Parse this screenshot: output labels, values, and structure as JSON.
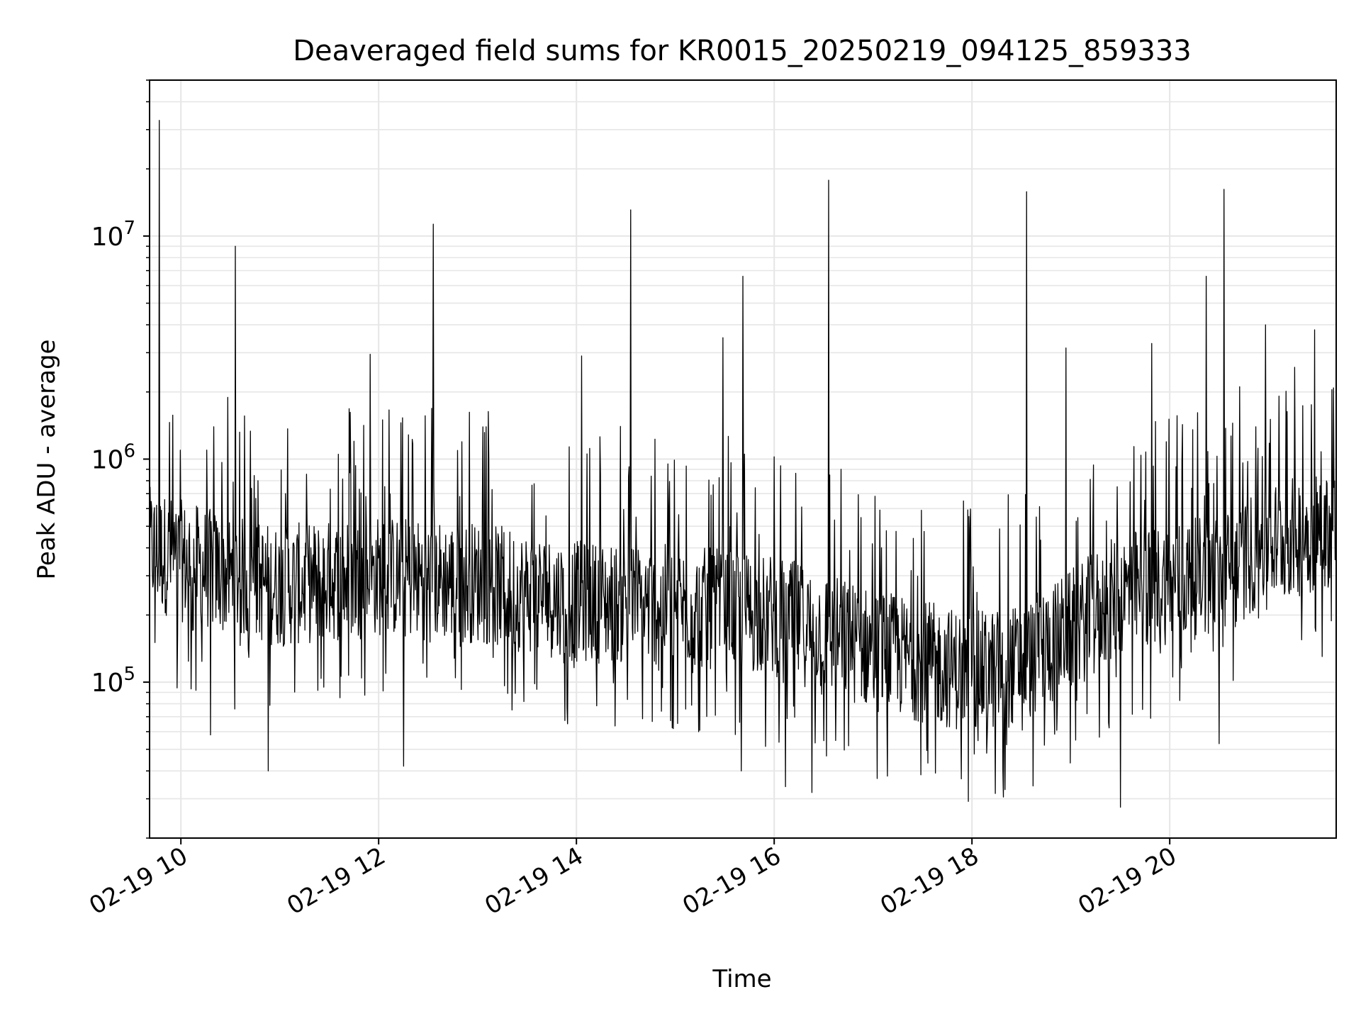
{
  "chart_data": {
    "type": "line",
    "title": "Deaveraged field sums for KR0015_20250219_094125_859333",
    "xlabel": "Time",
    "ylabel": "Peak ADU - average",
    "y_scale": "log",
    "ylim": [
      20000,
      50000000
    ],
    "xlim": [
      "2025-02-19 09:41",
      "2025-02-19 21:41"
    ],
    "x_ticks": [
      {
        "time": "2025-02-19 10:00",
        "label": "02-19 10"
      },
      {
        "time": "2025-02-19 12:00",
        "label": "02-19 12"
      },
      {
        "time": "2025-02-19 14:00",
        "label": "02-19 14"
      },
      {
        "time": "2025-02-19 16:00",
        "label": "02-19 16"
      },
      {
        "time": "2025-02-19 18:00",
        "label": "02-19 18"
      },
      {
        "time": "2025-02-19 20:00",
        "label": "02-19 20"
      }
    ],
    "y_ticks": [
      {
        "value": 100000,
        "base": "10",
        "exp": "5"
      },
      {
        "value": 1000000,
        "base": "10",
        "exp": "6"
      },
      {
        "value": 10000000,
        "base": "10",
        "exp": "7"
      }
    ],
    "grid": true,
    "line_color": "#000000",
    "series": [
      {
        "baseline": [
          {
            "time": "2025-02-19 09:41",
            "value": 400000
          },
          {
            "time": "2025-02-19 10:00",
            "value": 350000
          },
          {
            "time": "2025-02-19 10:30",
            "value": 300000
          },
          {
            "time": "2025-02-19 11:00",
            "value": 270000
          },
          {
            "time": "2025-02-19 12:00",
            "value": 300000
          },
          {
            "time": "2025-02-19 13:00",
            "value": 280000
          },
          {
            "time": "2025-02-19 14:00",
            "value": 230000
          },
          {
            "time": "2025-02-19 15:00",
            "value": 220000
          },
          {
            "time": "2025-02-19 16:00",
            "value": 200000
          },
          {
            "time": "2025-02-19 17:00",
            "value": 140000
          },
          {
            "time": "2025-02-19 18:00",
            "value": 110000
          },
          {
            "time": "2025-02-19 18:30",
            "value": 120000
          },
          {
            "time": "2025-02-19 19:00",
            "value": 170000
          },
          {
            "time": "2025-02-19 19:30",
            "value": 250000
          },
          {
            "time": "2025-02-19 20:00",
            "value": 280000
          },
          {
            "time": "2025-02-19 20:30",
            "value": 300000
          },
          {
            "time": "2025-02-19 21:00",
            "value": 420000
          },
          {
            "time": "2025-02-19 21:41",
            "value": 500000
          }
        ],
        "spikes": [
          {
            "time": "2025-02-19 09:47",
            "value": 33000000
          },
          {
            "time": "2025-02-19 10:33",
            "value": 9000000
          },
          {
            "time": "2025-02-19 12:33",
            "value": 11300000
          },
          {
            "time": "2025-02-19 14:33",
            "value": 13100000
          },
          {
            "time": "2025-02-19 15:41",
            "value": 6600000
          },
          {
            "time": "2025-02-19 16:33",
            "value": 17800000
          },
          {
            "time": "2025-02-19 18:33",
            "value": 15800000
          },
          {
            "time": "2025-02-19 20:33",
            "value": 16200000
          },
          {
            "time": "2025-02-19 20:22",
            "value": 6600000
          },
          {
            "time": "2025-02-19 21:28",
            "value": 3800000
          },
          {
            "time": "2025-02-19 15:29",
            "value": 3500000
          },
          {
            "time": "2025-02-19 14:03",
            "value": 2900000
          },
          {
            "time": "2025-02-19 11:55",
            "value": 2950000
          },
          {
            "time": "2025-02-19 19:49",
            "value": 3300000
          },
          {
            "time": "2025-02-19 18:57",
            "value": 3150000
          },
          {
            "time": "2025-02-19 20:58",
            "value": 4000000
          }
        ],
        "dips": [
          {
            "time": "2025-02-19 10:18",
            "value": 58000
          },
          {
            "time": "2025-02-19 10:53",
            "value": 40000
          },
          {
            "time": "2025-02-19 12:15",
            "value": 42000
          },
          {
            "time": "2025-02-19 15:40",
            "value": 40000
          },
          {
            "time": "2025-02-19 16:07",
            "value": 34000
          },
          {
            "time": "2025-02-19 16:23",
            "value": 32000
          },
          {
            "time": "2025-02-19 18:20",
            "value": 33000
          },
          {
            "time": "2025-02-19 19:30",
            "value": 27500
          },
          {
            "time": "2025-02-19 20:30",
            "value": 53000
          }
        ]
      }
    ]
  }
}
